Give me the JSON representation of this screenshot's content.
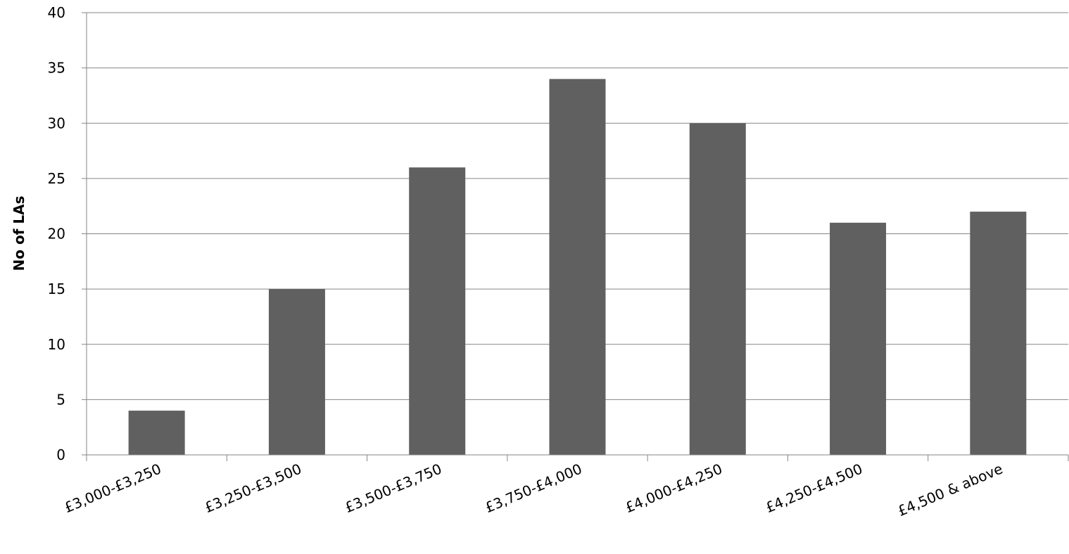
{
  "chart_data": {
    "type": "bar",
    "categories": [
      "£3,000-£3,250",
      "£3,250-£3,500",
      "£3,500-£3,750",
      "£3,750-£4,000",
      "£4,000-£4,250",
      "£4,250-£4,500",
      "£4,500 & above"
    ],
    "values": [
      4,
      15,
      26,
      34,
      30,
      21,
      22
    ],
    "title": "",
    "xlabel": "",
    "ylabel": "No of LAs",
    "ylim": [
      0,
      40
    ],
    "yticks": [
      0,
      5,
      10,
      15,
      20,
      25,
      30,
      35,
      40
    ],
    "grid": true,
    "legend": "none",
    "bar_color": "#606060",
    "grid_color": "#868686",
    "axis_color": "#868686"
  }
}
